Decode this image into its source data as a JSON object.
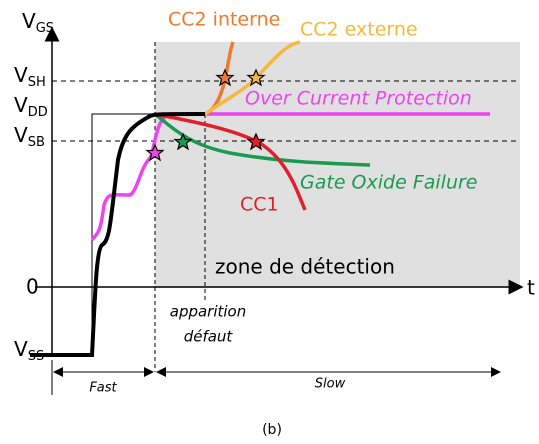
{
  "axis": {
    "y_label": {
      "main": "V",
      "sub": "GS"
    },
    "x_label": "t",
    "zero": "0",
    "levels": [
      {
        "main": "V",
        "sub": "SH"
      },
      {
        "main": "V",
        "sub": "DD"
      },
      {
        "main": "V",
        "sub": "SB"
      },
      {
        "main": "V",
        "sub": "SS"
      }
    ]
  },
  "curves": [
    "CC2 interne",
    "CC2 externe",
    "Over Current Protection",
    "Gate Oxide Failure",
    "CC1"
  ],
  "zone": "zone de détection",
  "fault": [
    "apparition",
    "défaut"
  ],
  "phases": [
    "Fast",
    "Slow"
  ],
  "caption": "(b)"
}
